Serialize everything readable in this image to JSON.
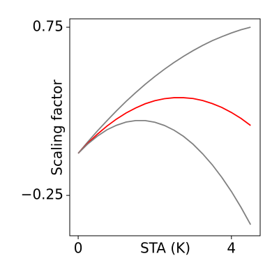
{
  "chart_data": {
    "type": "line",
    "xlabel": "STA (K)",
    "ylabel": "Scaling factor",
    "x": [
      0,
      0.25,
      0.5,
      0.75,
      1,
      1.25,
      1.5,
      1.75,
      2,
      2.25,
      2.5,
      2.75,
      3,
      3.25,
      3.5,
      3.75,
      4,
      4.25,
      4.5
    ],
    "series": [
      {
        "color": "#808080",
        "values": [
          0,
          0.068,
          0.133,
          0.194,
          0.253,
          0.309,
          0.361,
          0.411,
          0.457,
          0.5,
          0.54,
          0.577,
          0.611,
          0.642,
          0.67,
          0.694,
          0.716,
          0.735,
          0.75
        ]
      },
      {
        "color": "#ff0000",
        "values": [
          0,
          0.06,
          0.114,
          0.162,
          0.204,
          0.24,
          0.27,
          0.295,
          0.313,
          0.325,
          0.331,
          0.331,
          0.326,
          0.314,
          0.296,
          0.273,
          0.243,
          0.208,
          0.166
        ]
      },
      {
        "color": "#808080",
        "values": [
          0,
          0.056,
          0.102,
          0.14,
          0.167,
          0.186,
          0.195,
          0.195,
          0.185,
          0.166,
          0.138,
          0.101,
          0.054,
          -0.003,
          -0.068,
          -0.143,
          -0.227,
          -0.321,
          -0.424
        ]
      }
    ],
    "xlim": [
      -0.22,
      4.75
    ],
    "ylim": [
      -0.49,
      0.8
    ],
    "xticks": [
      0,
      4
    ],
    "yticks": [
      0.75,
      {
        "value": -0.25,
        "label": "−0.25"
      }
    ]
  }
}
